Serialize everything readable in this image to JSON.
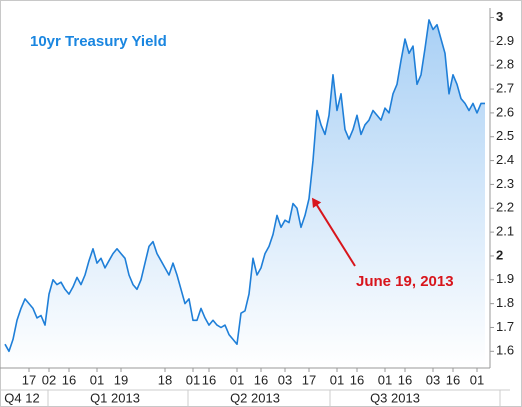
{
  "chart_data": {
    "type": "line",
    "title": "10yr Treasury Yield",
    "categories": [
      null,
      null,
      null,
      null,
      null,
      null,
      "17",
      null,
      null,
      null,
      null,
      "02",
      null,
      null,
      null,
      null,
      "16",
      null,
      null,
      null,
      null,
      null,
      null,
      "01",
      null,
      null,
      null,
      null,
      null,
      "19",
      null,
      null,
      null,
      null,
      null,
      null,
      null,
      null,
      null,
      null,
      "18",
      null,
      null,
      null,
      null,
      null,
      null,
      "01",
      null,
      null,
      null,
      "16",
      null,
      null,
      null,
      null,
      null,
      null,
      "01",
      null,
      null,
      null,
      null,
      null,
      "16",
      null,
      null,
      null,
      null,
      null,
      "03",
      null,
      null,
      null,
      null,
      null,
      "17",
      null,
      null,
      null,
      null,
      null,
      null,
      "01",
      null,
      null,
      null,
      null,
      "16",
      null,
      null,
      null,
      null,
      null,
      null,
      "01",
      null,
      null,
      null,
      null,
      "16",
      null,
      null,
      null,
      null,
      null,
      null,
      "03",
      null,
      null,
      null,
      null,
      "16",
      null,
      null,
      null,
      null,
      null,
      "01",
      null,
      null
    ],
    "quarters": [
      "Q4 12",
      "Q1 2013",
      "Q2 2013",
      "Q3 2013"
    ],
    "series": [
      {
        "name": "10yr Treasury Yield",
        "color": "#1f7fd8",
        "values": [
          1.63,
          1.6,
          1.65,
          1.73,
          1.78,
          1.82,
          1.8,
          1.78,
          1.74,
          1.75,
          1.71,
          1.84,
          1.9,
          1.88,
          1.89,
          1.86,
          1.84,
          1.87,
          1.91,
          1.88,
          1.92,
          1.98,
          2.03,
          1.97,
          1.99,
          1.95,
          1.98,
          2.01,
          2.03,
          2.01,
          1.99,
          1.92,
          1.88,
          1.86,
          1.9,
          1.97,
          2.04,
          2.06,
          2.01,
          1.98,
          1.95,
          1.92,
          1.97,
          1.92,
          1.86,
          1.8,
          1.82,
          1.73,
          1.73,
          1.78,
          1.74,
          1.71,
          1.73,
          1.71,
          1.7,
          1.71,
          1.67,
          1.65,
          1.63,
          1.76,
          1.77,
          1.84,
          1.99,
          1.92,
          1.95,
          2.01,
          2.04,
          2.09,
          2.17,
          2.12,
          2.15,
          2.14,
          2.22,
          2.2,
          2.12,
          2.17,
          2.24,
          2.4,
          2.61,
          2.55,
          2.51,
          2.59,
          2.76,
          2.61,
          2.68,
          2.53,
          2.49,
          2.53,
          2.59,
          2.51,
          2.55,
          2.57,
          2.61,
          2.59,
          2.57,
          2.62,
          2.6,
          2.68,
          2.72,
          2.82,
          2.91,
          2.85,
          2.88,
          2.72,
          2.76,
          2.87,
          2.99,
          2.95,
          2.97,
          2.91,
          2.85,
          2.68,
          2.76,
          2.72,
          2.66,
          2.64,
          2.61,
          2.64,
          2.6,
          2.64,
          2.64
        ]
      }
    ],
    "ylim": [
      1.53,
      3.04
    ],
    "yticks": [
      1.6,
      1.7,
      1.8,
      1.9,
      2,
      2.1,
      2.2,
      2.3,
      2.4,
      2.5,
      2.6,
      2.7,
      2.8,
      2.9,
      3
    ],
    "grid": false,
    "annotation": {
      "text": "June 19, 2013",
      "index": 76,
      "color": "#d8151c"
    }
  }
}
